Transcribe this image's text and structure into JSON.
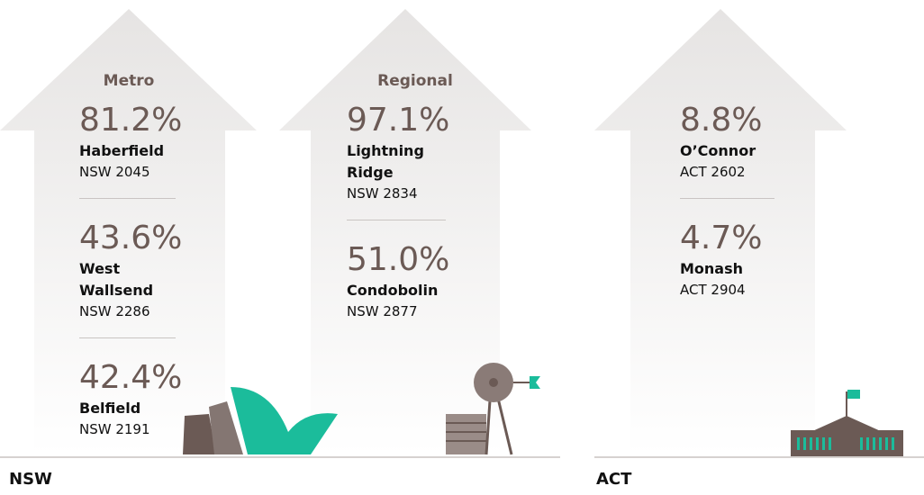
{
  "sections": [
    {
      "label": "NSW",
      "arrows": [
        {
          "heading": "Metro",
          "items": [
            {
              "value": "81.2%",
              "suburb": "Haberfield",
              "postcode": "NSW 2045"
            },
            {
              "value": "43.6%",
              "suburb": "West Wallsend",
              "postcode": "NSW 2286"
            },
            {
              "value": "42.4%",
              "suburb": "Belfield",
              "postcode": "NSW 2191"
            }
          ]
        },
        {
          "heading": "Regional",
          "items": [
            {
              "value": "97.1%",
              "suburb": "Lightning Ridge",
              "postcode": "NSW 2834"
            },
            {
              "value": "51.0%",
              "suburb": "Condobolin",
              "postcode": "NSW 2877"
            }
          ]
        }
      ]
    },
    {
      "label": "ACT",
      "arrows": [
        {
          "items": [
            {
              "value": "8.8%",
              "suburb": "O’Connor",
              "postcode": "ACT 2602"
            },
            {
              "value": "4.7%",
              "suburb": "Monash",
              "postcode": "ACT 2904"
            }
          ]
        }
      ]
    }
  ]
}
